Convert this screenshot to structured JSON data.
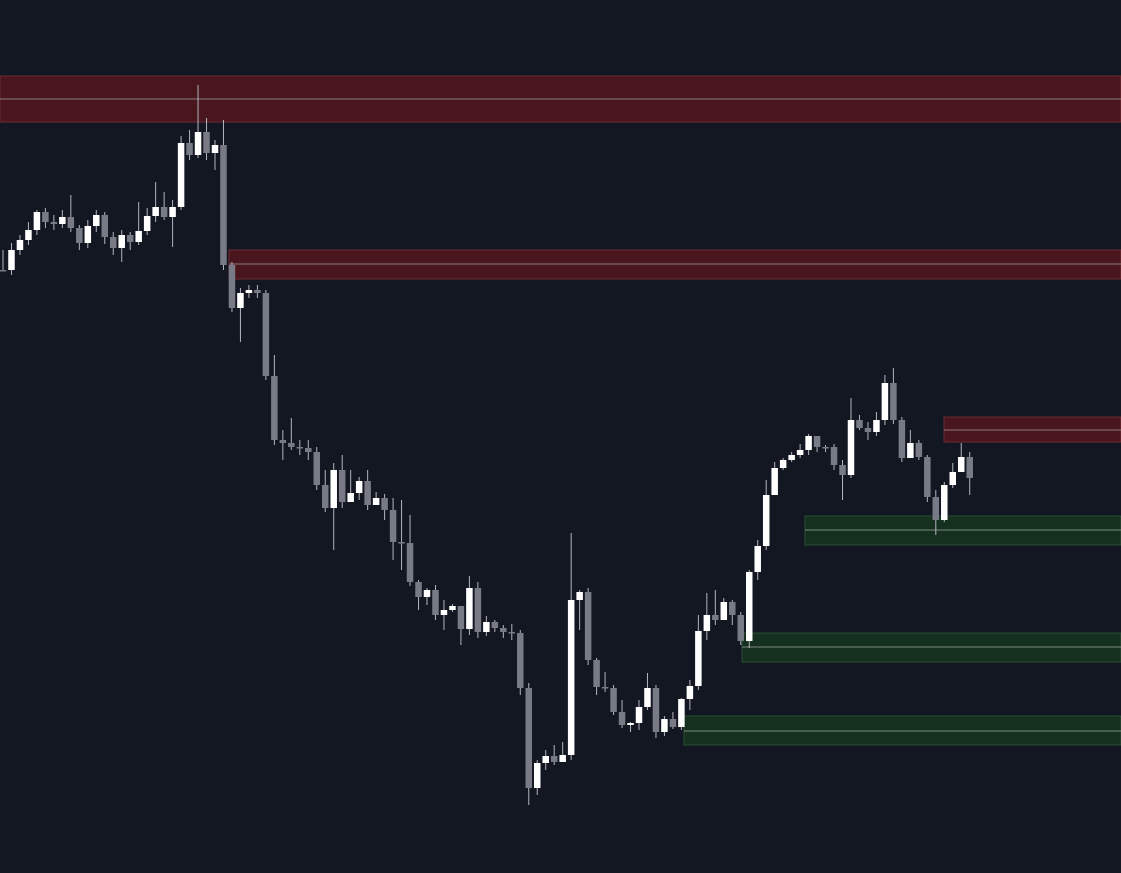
{
  "chart_data": {
    "type": "candlestick",
    "title": "",
    "xlabel": "",
    "ylabel": "",
    "grid": false,
    "legend": "none",
    "ylim": [
      0,
      873
    ],
    "colors": {
      "background": "#131722",
      "bull_body": "#ffffff",
      "bear_body": "#787b86",
      "wick": "#b2b5be",
      "supply_fill": "#4a161e",
      "supply_edge": "#6e2a32",
      "supply_mid": "#8a7a7d",
      "demand_fill": "#15301f",
      "demand_edge": "#2a4d35",
      "demand_mid": "#7c8a80"
    },
    "candles": [
      [
        270,
        270,
        270,
        250
      ],
      [
        270,
        250,
        275,
        243
      ],
      [
        250,
        240,
        255,
        235
      ],
      [
        240,
        230,
        245,
        222
      ],
      [
        230,
        212,
        235,
        210
      ],
      [
        212,
        222,
        228,
        208
      ],
      [
        222,
        224,
        230,
        215
      ],
      [
        224,
        217,
        228,
        210
      ],
      [
        217,
        228,
        232,
        195
      ],
      [
        228,
        243,
        250,
        225
      ],
      [
        243,
        226,
        248,
        220
      ],
      [
        226,
        215,
        232,
        210
      ],
      [
        215,
        237,
        244,
        212
      ],
      [
        237,
        248,
        255,
        232
      ],
      [
        248,
        235,
        262,
        230
      ],
      [
        235,
        242,
        250,
        232
      ],
      [
        242,
        231,
        245,
        202
      ],
      [
        231,
        216,
        235,
        208
      ],
      [
        216,
        207,
        222,
        182
      ],
      [
        207,
        217,
        220,
        192
      ],
      [
        217,
        207,
        247,
        200
      ],
      [
        207,
        143,
        210,
        136
      ],
      [
        143,
        155,
        160,
        130
      ],
      [
        155,
        132,
        158,
        85
      ],
      [
        132,
        153,
        160,
        118
      ],
      [
        153,
        145,
        170,
        140
      ],
      [
        145,
        265,
        270,
        120
      ],
      [
        265,
        308,
        312,
        262
      ],
      [
        308,
        293,
        342,
        288
      ],
      [
        293,
        290,
        298,
        285
      ],
      [
        290,
        293,
        298,
        285
      ],
      [
        293,
        376,
        380,
        290
      ],
      [
        376,
        440,
        445,
        355
      ],
      [
        440,
        443,
        460,
        430
      ],
      [
        443,
        447,
        450,
        418
      ],
      [
        447,
        448,
        455,
        440
      ],
      [
        448,
        452,
        460,
        440
      ],
      [
        452,
        485,
        490,
        447
      ],
      [
        485,
        508,
        512,
        470
      ],
      [
        508,
        470,
        550,
        463
      ],
      [
        470,
        502,
        508,
        455
      ],
      [
        502,
        493,
        500,
        470
      ],
      [
        493,
        481,
        500,
        477
      ],
      [
        481,
        505,
        510,
        470
      ],
      [
        505,
        498,
        505,
        492
      ],
      [
        498,
        510,
        520,
        494
      ],
      [
        510,
        542,
        560,
        498
      ],
      [
        542,
        543,
        570,
        500
      ],
      [
        543,
        582,
        586,
        515
      ],
      [
        582,
        597,
        610,
        580
      ],
      [
        597,
        590,
        605,
        588
      ],
      [
        590,
        615,
        620,
        585
      ],
      [
        615,
        610,
        630,
        600
      ],
      [
        610,
        606,
        612,
        604
      ],
      [
        606,
        629,
        645,
        608
      ],
      [
        629,
        588,
        635,
        576
      ],
      [
        588,
        632,
        638,
        582
      ],
      [
        632,
        622,
        636,
        616
      ],
      [
        622,
        628,
        632,
        620
      ],
      [
        628,
        632,
        638,
        625
      ],
      [
        632,
        633,
        640,
        624
      ],
      [
        633,
        688,
        695,
        630
      ],
      [
        688,
        788,
        805,
        683
      ],
      [
        788,
        763,
        795,
        760
      ],
      [
        763,
        756,
        770,
        750
      ],
      [
        756,
        762,
        765,
        745
      ],
      [
        762,
        755,
        760,
        742
      ],
      [
        755,
        600,
        760,
        533
      ],
      [
        600,
        592,
        630,
        590
      ],
      [
        592,
        660,
        665,
        588
      ],
      [
        660,
        687,
        695,
        658
      ],
      [
        687,
        688,
        692,
        672
      ],
      [
        688,
        712,
        715,
        685
      ],
      [
        712,
        725,
        728,
        700
      ],
      [
        725,
        723,
        732,
        722
      ],
      [
        723,
        707,
        730,
        700
      ],
      [
        707,
        688,
        710,
        673
      ],
      [
        688,
        732,
        738,
        685
      ],
      [
        732,
        719,
        736,
        716
      ],
      [
        719,
        727,
        729,
        712
      ],
      [
        727,
        699,
        730,
        698
      ],
      [
        699,
        686,
        710,
        680
      ],
      [
        686,
        631,
        690,
        615
      ],
      [
        631,
        615,
        640,
        593
      ],
      [
        615,
        620,
        625,
        590
      ],
      [
        620,
        602,
        615,
        598
      ],
      [
        602,
        615,
        625,
        600
      ],
      [
        615,
        641,
        645,
        612
      ],
      [
        641,
        572,
        648,
        570
      ],
      [
        572,
        546,
        580,
        540
      ],
      [
        546,
        495,
        550,
        480
      ],
      [
        495,
        468,
        480,
        462
      ],
      [
        468,
        460,
        470,
        458
      ],
      [
        460,
        455,
        462,
        452
      ],
      [
        455,
        450,
        458,
        444
      ],
      [
        450,
        436,
        455,
        434
      ],
      [
        436,
        447,
        452,
        440
      ],
      [
        447,
        447,
        452,
        445
      ],
      [
        447,
        465,
        470,
        444
      ],
      [
        465,
        475,
        500,
        460
      ],
      [
        475,
        420,
        478,
        398
      ],
      [
        420,
        428,
        430,
        415
      ],
      [
        428,
        432,
        440,
        422
      ],
      [
        432,
        420,
        436,
        412
      ],
      [
        420,
        383,
        425,
        375
      ],
      [
        383,
        420,
        424,
        368
      ],
      [
        420,
        458,
        462,
        417
      ],
      [
        458,
        443,
        448,
        430
      ],
      [
        443,
        457,
        460,
        440
      ],
      [
        457,
        497,
        502,
        455
      ],
      [
        497,
        520,
        535,
        490
      ],
      [
        520,
        485,
        522,
        482
      ],
      [
        485,
        472,
        488,
        463
      ],
      [
        472,
        457,
        462,
        443
      ],
      [
        457,
        478,
        495,
        452
      ]
    ],
    "zones": [
      {
        "kind": "supply",
        "top": 76,
        "bottom": 122,
        "mid": 99
      },
      {
        "kind": "supply",
        "top": 250,
        "bottom": 279,
        "mid": 264
      },
      {
        "kind": "supply",
        "top": 417,
        "bottom": 442,
        "mid": 430
      },
      {
        "kind": "demand",
        "top": 516,
        "bottom": 545,
        "mid": 530
      },
      {
        "kind": "demand",
        "top": 633,
        "bottom": 662,
        "mid": 647
      },
      {
        "kind": "demand",
        "top": 716,
        "bottom": 745,
        "mid": 731
      }
    ]
  }
}
